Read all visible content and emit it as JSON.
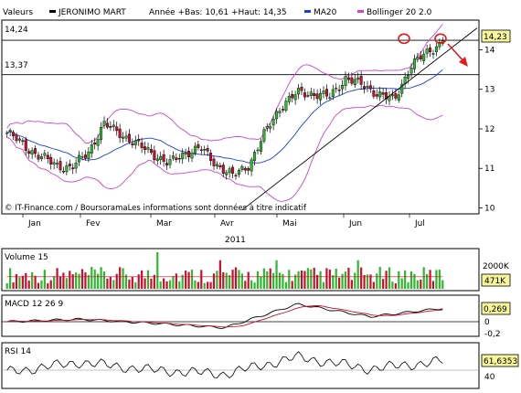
{
  "header": {
    "valeurs_label": "Valeurs",
    "security_name": "JERONIMO MART",
    "range_text": "Année +Bas: 10,61 +Haut: 14,35",
    "ma_label": "MA20",
    "bollinger_label": "Bollinger 20 2.0",
    "ma_color": "#1e3cd6",
    "bollinger_color": "#cc44cc"
  },
  "price_panel": {
    "level_high_label": "14,24",
    "level_high_value": 14.24,
    "level_low_label": "13,37",
    "level_low_value": 13.37,
    "last_price_tag": "14,23",
    "y_ticks": [
      "14",
      "13",
      "12",
      "11",
      "10"
    ],
    "y_tick_values": [
      14,
      13,
      12,
      11,
      10
    ],
    "ylim": [
      9.85,
      14.75
    ],
    "credit": "© IT-Finance.com / BoursoramaLes informations sont données à titre indicatif",
    "months": [
      "Jan",
      "Fev",
      "Mar",
      "Avr",
      "Mai",
      "Jun",
      "Jul"
    ],
    "year": "2011",
    "up_color": "#2fb82f",
    "down_color": "#c8102e"
  },
  "volume_panel": {
    "title": "Volume 15",
    "y_tick": "2000K",
    "last_tag": "471K"
  },
  "macd_panel": {
    "title": "MACD 12 26 9",
    "y_ticks": [
      "0",
      "-0,2"
    ],
    "last_tag": "0,269"
  },
  "rsi_panel": {
    "title": "RSI 14",
    "y_tick": "40",
    "last_tag": "61,6353"
  },
  "chart_data": [
    {
      "type": "candlestick",
      "title": "JERONIMO MART",
      "x": [
        "Jan",
        "Fev",
        "Mar",
        "Avr",
        "Mai",
        "Jun",
        "Jul"
      ],
      "close_path": [
        {
          "x": "Jan 03",
          "y": 11.9
        },
        {
          "x": "Jan 10",
          "y": 11.6
        },
        {
          "x": "Jan 17",
          "y": 11.3
        },
        {
          "x": "Jan 24",
          "y": 11.1
        },
        {
          "x": "Jan 31",
          "y": 11.0
        },
        {
          "x": "Feb 07",
          "y": 11.4
        },
        {
          "x": "Feb 14",
          "y": 12.1
        },
        {
          "x": "Feb 21",
          "y": 11.9
        },
        {
          "x": "Feb 28",
          "y": 11.6
        },
        {
          "x": "Mar 07",
          "y": 11.4
        },
        {
          "x": "Mar 14",
          "y": 11.1
        },
        {
          "x": "Mar 21",
          "y": 11.4
        },
        {
          "x": "Mar 28",
          "y": 11.5
        },
        {
          "x": "Apr 04",
          "y": 11.1
        },
        {
          "x": "Apr 11",
          "y": 10.8
        },
        {
          "x": "Apr 18",
          "y": 11.1
        },
        {
          "x": "Apr 25",
          "y": 11.9
        },
        {
          "x": "May 02",
          "y": 12.6
        },
        {
          "x": "May 09",
          "y": 12.9
        },
        {
          "x": "May 16",
          "y": 12.9
        },
        {
          "x": "May 23",
          "y": 12.8
        },
        {
          "x": "May 30",
          "y": 13.3
        },
        {
          "x": "Jun 06",
          "y": 13.1
        },
        {
          "x": "Jun 13",
          "y": 12.9
        },
        {
          "x": "Jun 20",
          "y": 12.7
        },
        {
          "x": "Jun 27",
          "y": 13.6
        },
        {
          "x": "Jul 04",
          "y": 13.9
        },
        {
          "x": "Jul 11",
          "y": 14.23
        }
      ],
      "ylim": [
        9.85,
        14.75
      ]
    },
    {
      "type": "bar",
      "title": "Volume 15",
      "ylim": [
        0,
        2600000
      ]
    },
    {
      "type": "line",
      "title": "MACD 12 26 9",
      "series": [
        {
          "x": [
            "Jan",
            "Fev",
            "Mar",
            "Avr",
            "Mai",
            "Jun",
            "Jul"
          ],
          "values": [
            0.0,
            0.05,
            -0.03,
            -0.12,
            0.35,
            0.1,
            0.269
          ]
        }
      ]
    },
    {
      "type": "line",
      "title": "RSI 14",
      "series": [
        {
          "x": [
            "Jan",
            "Fev",
            "Mar",
            "Avr",
            "Mai",
            "Jun",
            "Jul"
          ],
          "values": [
            45,
            60,
            48,
            42,
            68,
            50,
            61.6353
          ]
        }
      ]
    }
  ]
}
